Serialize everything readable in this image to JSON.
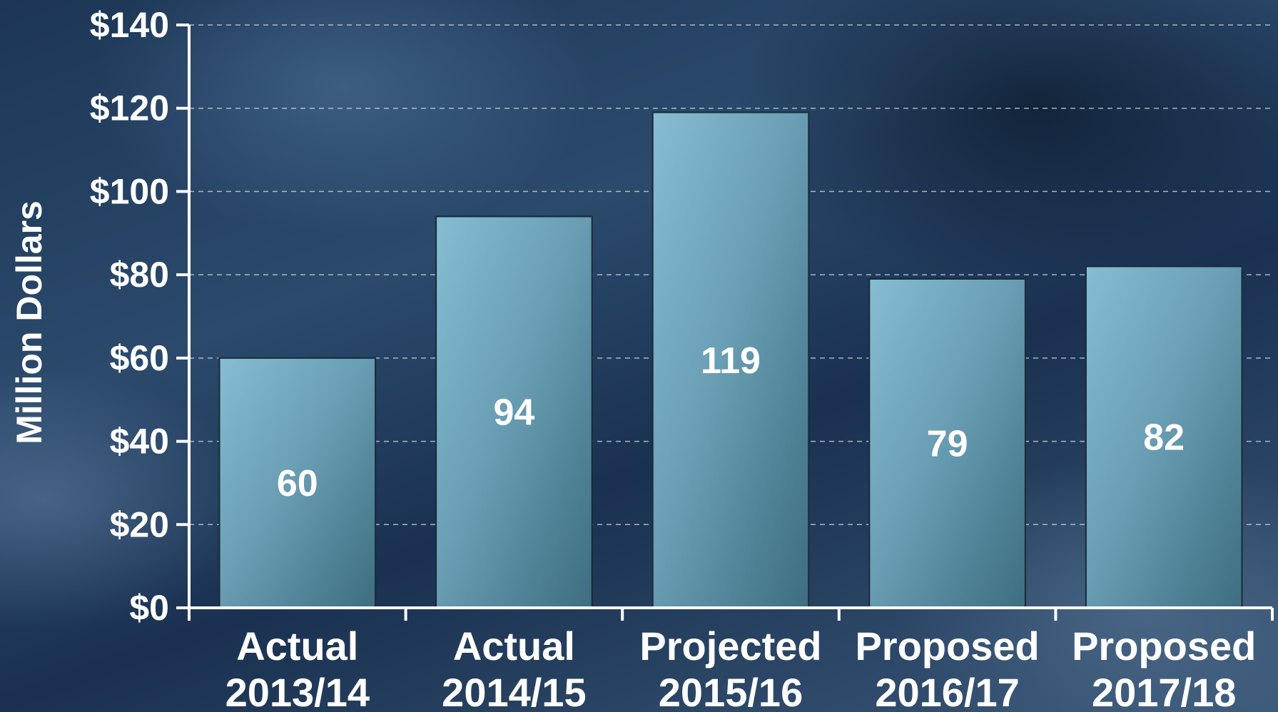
{
  "chart_data": {
    "type": "bar",
    "title": "",
    "ylabel": "Million Dollars",
    "xlabel": "",
    "categories": [
      [
        "Actual",
        "2013/14"
      ],
      [
        "Actual",
        "2014/15"
      ],
      [
        "Projected",
        "2015/16"
      ],
      [
        "Proposed",
        "2016/17"
      ],
      [
        "Proposed",
        "2017/18"
      ]
    ],
    "values": [
      60,
      94,
      119,
      79,
      82
    ],
    "data_labels": [
      "60",
      "94",
      "119",
      "79",
      "82"
    ],
    "ylim": [
      0,
      140
    ],
    "y_ticks": [
      0,
      20,
      40,
      60,
      80,
      100,
      120,
      140
    ],
    "y_tick_labels": [
      "$0",
      "$20",
      "$40",
      "$60",
      "$80",
      "$100",
      "$120",
      "$140"
    ],
    "grid": true,
    "legend": "none",
    "colors": {
      "bar_top": "#86bdd2",
      "bar_bottom": "#3d6d80",
      "bar_border": "#1a2a38",
      "grid": "#c8d4e0",
      "axis": "#ffffff",
      "text": "#ffffff"
    }
  }
}
